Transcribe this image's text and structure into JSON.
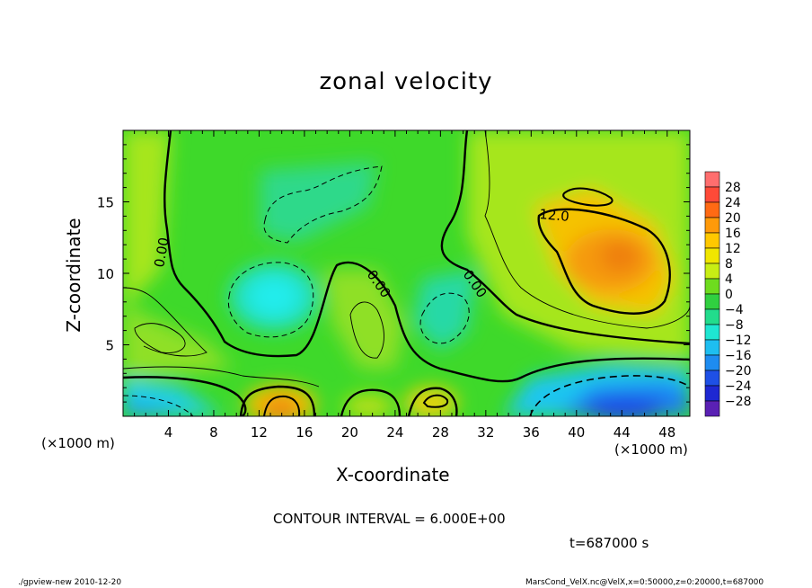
{
  "chart_data": {
    "type": "heatmap",
    "title": "zonal velocity",
    "xlabel": "X-coordinate",
    "ylabel": "Z-coordinate",
    "x_unit_label": "(×1000 m)",
    "xlim": [
      0,
      50
    ],
    "ylim": [
      0,
      20
    ],
    "x_ticks": [
      4,
      8,
      12,
      16,
      20,
      24,
      28,
      32,
      36,
      40,
      44,
      48
    ],
    "y_ticks": [
      5,
      10,
      15
    ],
    "colorbar": {
      "levels": [
        28,
        24,
        20,
        16,
        12,
        8,
        4,
        0,
        -4,
        -8,
        -12,
        -16,
        -20,
        -24,
        -28
      ],
      "label_texts": [
        "28",
        "24",
        "20",
        "16",
        "12",
        "8",
        "4",
        "0",
        "−4",
        "−8",
        "−12",
        "−16",
        "−20",
        "−24",
        "−28"
      ]
    },
    "contour_labels": [
      "0.00",
      "0.00",
      "0.00",
      "12.0"
    ],
    "contour_interval_text": "CONTOUR INTERVAL = 6.000E+00",
    "time_text": "t=687000 s",
    "footer_left": "./gpview-new  2010-12-20",
    "footer_right": "MarsCond_VelX.nc@VelX,x=0:50000,z=0:20000,t=687000"
  }
}
